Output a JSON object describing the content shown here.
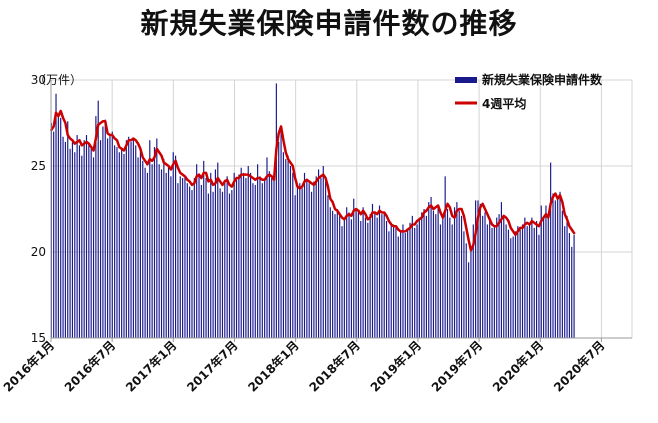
{
  "chart_data": {
    "type": "bar",
    "title": "新規失業保険申請件数の推移",
    "unit_label": "（万件）",
    "ylim": [
      15,
      30
    ],
    "yticks": [
      15,
      20,
      25,
      30
    ],
    "xlim": [
      "2016-01",
      "2020-10"
    ],
    "xticks": [
      "2016年1月",
      "2016年7月",
      "2017年1月",
      "2017年7月",
      "2018年1月",
      "2018年7月",
      "2019年1月",
      "2019年7月",
      "2020年1月",
      "2020年7月"
    ],
    "grid": true,
    "legend_position": "top-right",
    "colors": {
      "bars": "#1a1a8c",
      "line": "#cc0000",
      "grid": "#d4d4d4",
      "axis": "#999999"
    },
    "series": [
      {
        "name": "新規失業保険申請件数",
        "kind": "bar",
        "start": "2016-01-02",
        "interval_weeks": 1,
        "values": [
          27.5,
          27.0,
          29.2,
          28.0,
          27.8,
          26.7,
          26.4,
          27.6,
          26.0,
          26.5,
          25.8,
          26.8,
          26.2,
          25.6,
          26.5,
          26.8,
          26.3,
          26.0,
          25.5,
          27.9,
          28.8,
          26.5,
          27.3,
          27.7,
          26.6,
          26.8,
          27.0,
          26.2,
          26.1,
          25.8,
          26.0,
          25.7,
          26.5,
          26.7,
          26.4,
          26.6,
          26.2,
          25.5,
          25.9,
          25.3,
          24.9,
          24.6,
          26.5,
          25.1,
          26.1,
          26.6,
          25.1,
          24.8,
          25.4,
          24.6,
          24.9,
          24.4,
          25.8,
          25.6,
          24.0,
          24.4,
          24.3,
          24.4,
          24.0,
          23.8,
          23.6,
          24.3,
          25.1,
          24.4,
          23.9,
          25.3,
          24.3,
          23.4,
          24.6,
          23.5,
          24.8,
          25.2,
          23.7,
          23.5,
          24.2,
          24.4,
          23.4,
          23.6,
          24.6,
          24.2,
          24.5,
          24.9,
          24.6,
          24.3,
          25.0,
          24.6,
          24.0,
          23.9,
          25.1,
          24.4,
          24.0,
          24.2,
          25.5,
          24.7,
          24.3,
          24.2,
          29.8,
          26.4,
          27.1,
          25.8,
          25.4,
          25.6,
          25.0,
          24.6,
          23.3,
          23.9,
          24.0,
          23.7,
          24.6,
          24.2,
          24.0,
          23.5,
          24.1,
          24.4,
          24.8,
          24.3,
          25.0,
          24.1,
          23.3,
          22.6,
          22.4,
          22.2,
          22.5,
          22.3,
          21.5,
          21.9,
          22.6,
          22.3,
          21.9,
          23.1,
          22.5,
          22.3,
          21.8,
          22.6,
          22.0,
          21.7,
          22.2,
          22.8,
          22.3,
          22.0,
          22.7,
          22.2,
          22.3,
          21.8,
          21.2,
          21.7,
          21.6,
          21.4,
          20.9,
          21.2,
          21.6,
          21.1,
          21.3,
          21.7,
          22.1,
          21.4,
          21.6,
          22.0,
          22.3,
          22.5,
          22.1,
          22.9,
          23.2,
          22.4,
          22.2,
          22.6,
          21.6,
          22.0,
          24.4,
          22.5,
          22.0,
          21.6,
          22.6,
          22.9,
          22.4,
          22.1,
          21.2,
          20.5,
          19.4,
          20.2,
          21.6,
          23.0,
          23.0,
          22.8,
          22.1,
          22.3,
          21.6,
          22.0,
          21.4,
          21.5,
          22.0,
          22.2,
          22.9,
          22.0,
          21.6,
          21.3,
          20.8,
          20.9,
          21.2,
          21.5,
          21.3,
          21.6,
          22.0,
          21.5,
          21.7,
          22.0,
          21.4,
          21.8,
          21.0,
          22.7,
          22.1,
          22.7,
          22.2,
          25.2,
          23.4,
          23.0,
          23.2,
          23.5,
          22.4,
          21.5,
          22.1,
          21.1,
          20.3,
          21.0
        ]
      },
      {
        "name": "4週平均",
        "kind": "line",
        "start": "2016-01-02",
        "interval_weeks": 1,
        "values": [
          27.1,
          27.3,
          28.1,
          27.9,
          28.2,
          27.8,
          27.5,
          26.8,
          26.6,
          26.5,
          26.3,
          26.4,
          26.5,
          26.2,
          26.3,
          26.4,
          26.3,
          26.1,
          25.9,
          26.6,
          27.4,
          27.5,
          27.6,
          27.6,
          26.9,
          26.8,
          26.8,
          26.6,
          26.5,
          26.1,
          26.0,
          25.9,
          26.2,
          26.5,
          26.5,
          26.6,
          26.5,
          26.3,
          26.0,
          25.5,
          25.3,
          25.1,
          25.4,
          25.3,
          25.5,
          26.0,
          25.8,
          25.6,
          25.2,
          25.1,
          25.0,
          24.8,
          25.1,
          25.3,
          24.9,
          24.6,
          24.5,
          24.4,
          24.2,
          24.1,
          23.9,
          24.0,
          24.4,
          24.5,
          24.3,
          24.6,
          24.6,
          24.1,
          24.2,
          23.9,
          24.0,
          24.3,
          24.1,
          23.9,
          24.1,
          24.2,
          23.9,
          23.8,
          24.1,
          24.3,
          24.3,
          24.5,
          24.5,
          24.5,
          24.5,
          24.4,
          24.3,
          24.2,
          24.3,
          24.3,
          24.2,
          24.2,
          24.4,
          24.5,
          24.4,
          24.2,
          26.0,
          26.9,
          27.3,
          26.5,
          25.8,
          25.4,
          25.2,
          25.0,
          24.3,
          23.8,
          23.7,
          23.8,
          24.1,
          24.2,
          24.1,
          24.0,
          23.9,
          24.1,
          24.3,
          24.4,
          24.5,
          24.3,
          23.8,
          23.1,
          22.9,
          22.5,
          22.4,
          22.2,
          22.0,
          21.9,
          22.1,
          22.2,
          22.1,
          22.4,
          22.5,
          22.4,
          22.2,
          22.4,
          22.2,
          21.9,
          22.0,
          22.3,
          22.3,
          22.2,
          22.4,
          22.3,
          22.3,
          22.1,
          21.8,
          21.6,
          21.5,
          21.5,
          21.3,
          21.2,
          21.2,
          21.2,
          21.3,
          21.4,
          21.6,
          21.6,
          21.8,
          21.9,
          22.0,
          22.3,
          22.4,
          22.6,
          22.7,
          22.5,
          22.6,
          22.7,
          22.3,
          22.0,
          22.4,
          22.8,
          22.6,
          22.1,
          22.0,
          22.4,
          22.5,
          22.5,
          22.1,
          21.4,
          20.7,
          20.1,
          20.4,
          21.1,
          22.0,
          22.6,
          22.8,
          22.5,
          22.2,
          21.9,
          21.6,
          21.5,
          21.5,
          21.7,
          21.9,
          22.1,
          22.0,
          21.8,
          21.4,
          21.2,
          21.0,
          21.2,
          21.4,
          21.4,
          21.6,
          21.7,
          21.6,
          21.8,
          21.7,
          21.6,
          21.5,
          21.8,
          22.0,
          22.2,
          22.0,
          22.8,
          23.2,
          23.4,
          23.1,
          23.3,
          22.9,
          22.2,
          21.9,
          21.5,
          21.3,
          21.1
        ]
      }
    ]
  }
}
